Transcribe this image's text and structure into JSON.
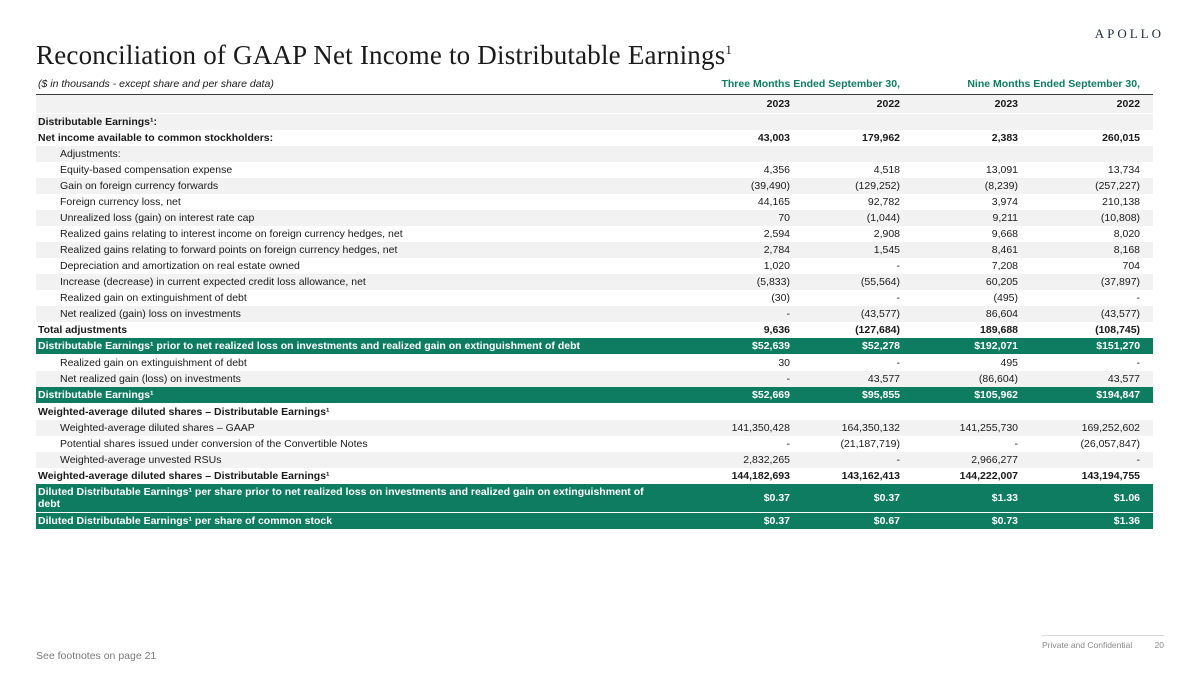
{
  "colors": {
    "accent_green": "#0E7C61",
    "shade_gray": "#F2F2F2",
    "text_dark": "#1A1A1A"
  },
  "brand": {
    "wordmark": "APOLLO"
  },
  "page": {
    "title": "Reconciliation of GAAP Net Income to Distributable Earnings",
    "title_superscript": "1"
  },
  "table": {
    "units_note": "($ in thousands - except share and per share data)",
    "period_headers": [
      "Three Months Ended September 30,",
      "Nine Months Ended September 30,"
    ],
    "year_headers": [
      "2023",
      "2022",
      "2023",
      "2022"
    ],
    "rows": [
      {
        "label": "Distributable Earnings¹:",
        "values": [
          "",
          "",
          "",
          ""
        ],
        "bold": true,
        "shade": true
      },
      {
        "label": "Net income available to common stockholders:",
        "values": [
          "43,003",
          "179,962",
          "2,383",
          "260,015"
        ],
        "bold": true
      },
      {
        "label": "Adjustments:",
        "values": [
          "",
          "",
          "",
          ""
        ],
        "indent": true,
        "shade": true
      },
      {
        "label": "Equity-based compensation expense",
        "values": [
          "4,356",
          "4,518",
          "13,091",
          "13,734"
        ],
        "indent": true
      },
      {
        "label": "Gain on foreign currency forwards",
        "values": [
          "(39,490)",
          "(129,252)",
          "(8,239)",
          "(257,227)"
        ],
        "indent": true,
        "shade": true
      },
      {
        "label": "Foreign currency loss, net",
        "values": [
          "44,165",
          "92,782",
          "3,974",
          "210,138"
        ],
        "indent": true
      },
      {
        "label": "Unrealized loss (gain) on interest rate cap",
        "values": [
          "70",
          "(1,044)",
          "9,211",
          "(10,808)"
        ],
        "indent": true,
        "shade": true
      },
      {
        "label": "Realized gains relating to interest income on foreign currency hedges, net",
        "values": [
          "2,594",
          "2,908",
          "9,668",
          "8,020"
        ],
        "indent": true
      },
      {
        "label": "Realized gains relating to forward points on foreign currency hedges, net",
        "values": [
          "2,784",
          "1,545",
          "8,461",
          "8,168"
        ],
        "indent": true,
        "shade": true
      },
      {
        "label": "Depreciation and amortization on real estate owned",
        "values": [
          "1,020",
          "-",
          "7,208",
          "704"
        ],
        "indent": true
      },
      {
        "label": "Increase (decrease) in current expected credit loss allowance, net",
        "values": [
          "(5,833)",
          "(55,564)",
          "60,205",
          "(37,897)"
        ],
        "indent": true,
        "shade": true
      },
      {
        "label": "Realized gain on extinguishment of debt",
        "values": [
          "(30)",
          "-",
          "(495)",
          "-"
        ],
        "indent": true
      },
      {
        "label": "Net realized (gain) loss on investments",
        "values": [
          "-",
          "(43,577)",
          "86,604",
          "(43,577)"
        ],
        "indent": true,
        "shade": true
      },
      {
        "label": "Total adjustments",
        "values": [
          "9,636",
          "(127,684)",
          "189,688",
          "(108,745)"
        ],
        "bold": true
      },
      {
        "label": "Distributable Earnings¹ prior to net realized loss on investments and realized gain on extinguishment of debt",
        "values": [
          "$52,639",
          "$52,278",
          "$192,071",
          "$151,270"
        ],
        "highlight": true
      },
      {
        "label": "Realized gain on extinguishment of debt",
        "values": [
          "30",
          "-",
          "495",
          "-"
        ],
        "indent": true
      },
      {
        "label": "Net realized gain (loss) on investments",
        "values": [
          "-",
          "43,577",
          "(86,604)",
          "43,577"
        ],
        "indent": true,
        "shade": true
      },
      {
        "label": "Distributable Earnings¹",
        "values": [
          "$52,669",
          "$95,855",
          "$105,962",
          "$194,847"
        ],
        "highlight": true
      },
      {
        "label": "Weighted-average diluted shares – Distributable Earnings¹",
        "values": [
          "",
          "",
          "",
          ""
        ],
        "bold": true
      },
      {
        "label": "Weighted-average diluted shares – GAAP",
        "values": [
          "141,350,428",
          "164,350,132",
          "141,255,730",
          "169,252,602"
        ],
        "indent": true,
        "shade": true
      },
      {
        "label": "Potential shares issued under conversion of the Convertible Notes",
        "values": [
          "-",
          "(21,187,719)",
          "-",
          "(26,057,847)"
        ],
        "indent": true
      },
      {
        "label": "Weighted-average unvested RSUs",
        "values": [
          "2,832,265",
          "-",
          "2,966,277",
          "-"
        ],
        "indent": true,
        "shade": true
      },
      {
        "label": "Weighted-average diluted shares – Distributable Earnings¹",
        "values": [
          "144,182,693",
          "143,162,413",
          "144,222,007",
          "143,194,755"
        ],
        "bold": true
      },
      {
        "label": "Diluted Distributable Earnings¹ per share prior to net realized loss on investments and realized gain on extinguishment of debt",
        "values": [
          "$0.37",
          "$0.37",
          "$1.33",
          "$1.06"
        ],
        "highlight": true
      },
      {
        "label": "Diluted Distributable Earnings¹ per share of common stock",
        "values": [
          "$0.37",
          "$0.67",
          "$0.73",
          "$1.36"
        ],
        "highlight": true
      }
    ]
  },
  "footer": {
    "left_note": "See footnotes on page 21",
    "confidentiality": "Private and Confidential",
    "page_number": "20"
  }
}
